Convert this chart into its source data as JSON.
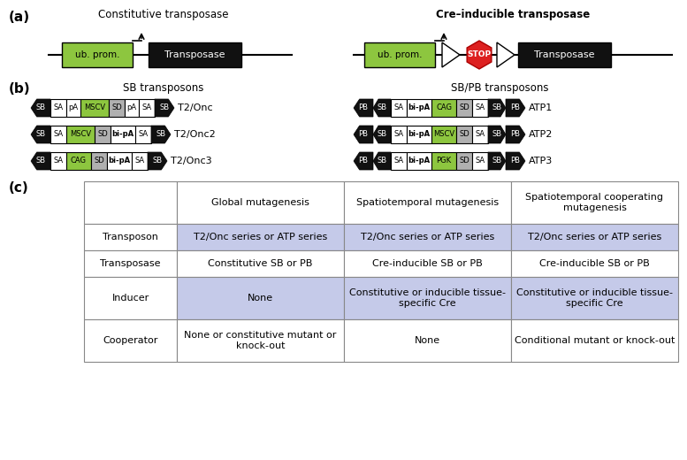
{
  "panel_a_left_label": "Constitutive transposase",
  "panel_a_right_label": "Cre–inducible transposase",
  "panel_b_left_label": "SB transposons",
  "panel_b_right_label": "SB/PB transposons",
  "color_green": "#8dc63f",
  "color_gray": "#b0b0b0",
  "color_black": "#111111",
  "color_red": "#dd2020",
  "color_blue_light": "#b8bfe0",
  "color_white": "#ffffff",
  "col_headers": [
    "Global mutagenesis",
    "Spatiotemporal mutagenesis",
    "Spatiotemporal cooperating\nmutagenesis"
  ],
  "row_headers": [
    "Transposon",
    "Transposase",
    "Inducer",
    "Cooperator"
  ],
  "cell_data": [
    [
      "T2/Onc series or ATP series",
      "T2/Onc series or ATP series",
      "T2/Onc series or ATP series"
    ],
    [
      "Constitutive SB or PB",
      "Cre-inducible SB or PB",
      "Cre-inducible SB or PB"
    ],
    [
      "None",
      "Constitutive or inducible tissue-\nspecific Cre",
      "Constitutive or inducible tissue-\nspecific Cre"
    ],
    [
      "None or constitutive mutant or\nknock-out",
      "None",
      "Conditional mutant or knock-out"
    ]
  ],
  "row_colors": [
    "#c5cae9",
    "#ffffff",
    "#c5cae9",
    "#ffffff"
  ]
}
